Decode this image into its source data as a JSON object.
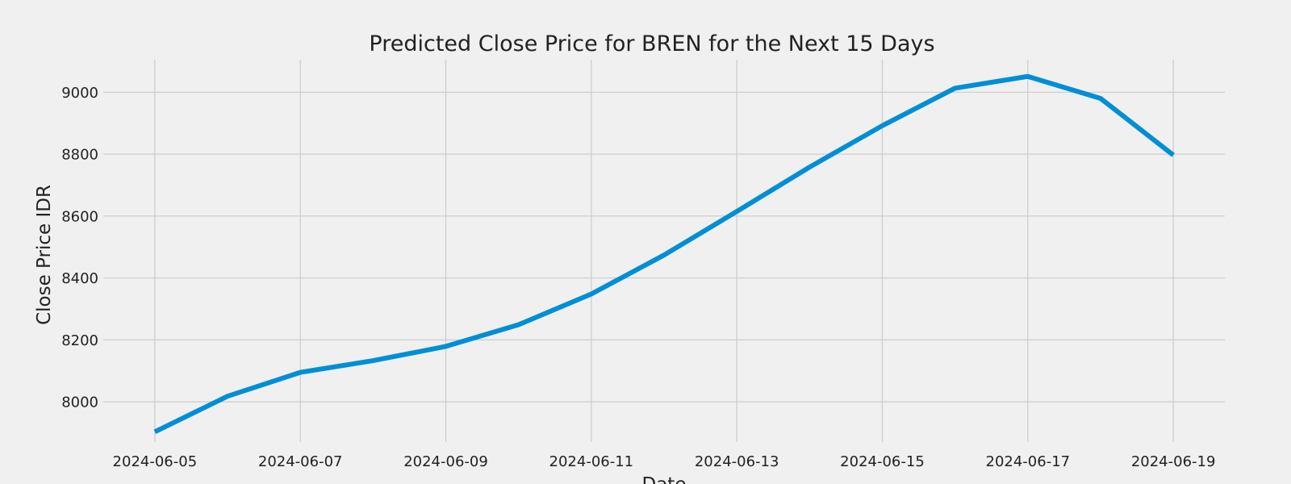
{
  "chart_data": {
    "type": "line",
    "title": "Predicted Close Price for BREN for the Next 15 Days",
    "xlabel": "Date",
    "ylabel": "Close Price IDR",
    "x": [
      "2024-06-05",
      "2024-06-06",
      "2024-06-07",
      "2024-06-08",
      "2024-06-09",
      "2024-06-10",
      "2024-06-11",
      "2024-06-12",
      "2024-06-13",
      "2024-06-14",
      "2024-06-15",
      "2024-06-16",
      "2024-06-17",
      "2024-06-18",
      "2024-06-19"
    ],
    "series": [
      {
        "values": [
          7903,
          8018,
          8095,
          8133,
          8179,
          8249,
          8348,
          8474,
          8615,
          8758,
          8892,
          9013,
          9051,
          8980,
          8797
        ],
        "color": "#008fd5"
      }
    ],
    "x_ticks": [
      "2024-06-05",
      "2024-06-07",
      "2024-06-09",
      "2024-06-11",
      "2024-06-13",
      "2024-06-15",
      "2024-06-17",
      "2024-06-19"
    ],
    "y_ticks": [
      8000,
      8200,
      8400,
      8600,
      8800,
      9000
    ],
    "ylim": [
      7870,
      9105
    ],
    "xlim": [
      "2024-06-04T07:00",
      "2024-06-19T17:00"
    ],
    "grid": true,
    "style": "fivethirtyeight",
    "background_color": "#f0f0f0",
    "grid_color": "#cbcbcb"
  }
}
